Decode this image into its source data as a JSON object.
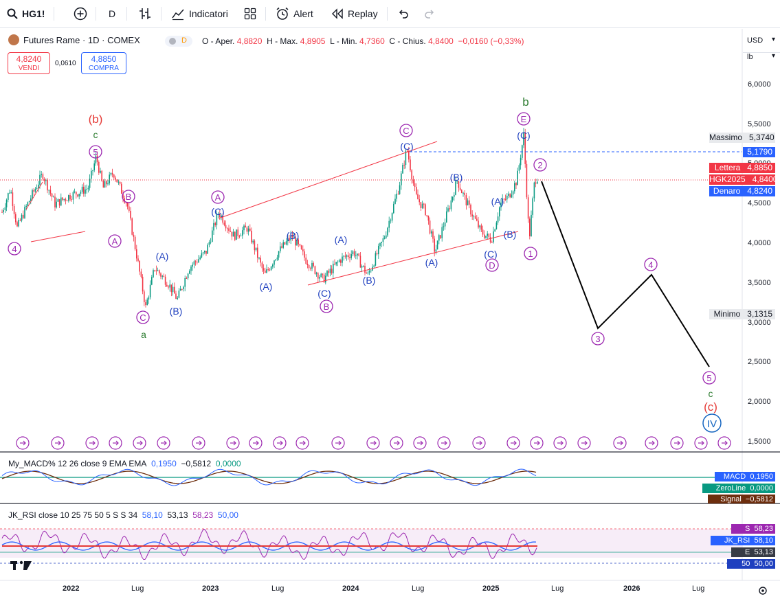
{
  "toolbar": {
    "symbol": "HG1!",
    "interval": "D",
    "indicators_label": "Indicatori",
    "alert_label": "Alert",
    "replay_label": "Replay"
  },
  "header": {
    "title": "Futures Rame · 1D · COMEX",
    "d_badge": "D",
    "ohlc": {
      "o_label": "O - Aper.",
      "o_value": "4,8820",
      "h_label": "H - Max.",
      "h_value": "4,8905",
      "l_label": "L - Min.",
      "l_value": "4,7360",
      "c_label": "C - Chius.",
      "c_value": "4,8400",
      "change": "−0,0160 (−0,33%)"
    },
    "sell": {
      "price": "4,8240",
      "label": "VENDI"
    },
    "spread": "0,0610",
    "buy": {
      "price": "4,8850",
      "label": "COMPRA"
    }
  },
  "scale": {
    "currency": "USD",
    "unit": "lb",
    "ticks": [
      "6,0000",
      "5,5000",
      "5,0000",
      "4,5000",
      "4,0000",
      "3,5000",
      "3,0000",
      "2,5000",
      "2,0000",
      "1,5000"
    ]
  },
  "price_labels": {
    "massimo": {
      "label": "Massimo",
      "value": "5,3740"
    },
    "level": "5,1790",
    "lettera": {
      "label": "Lettera",
      "value": "4,8850"
    },
    "symbol_price": {
      "label": "HGK2025",
      "value": "4,8400"
    },
    "denaro": {
      "label": "Denaro",
      "value": "4,8240"
    },
    "minimo": {
      "label": "Minimo",
      "value": "3,1315"
    }
  },
  "x_axis": [
    "2022",
    "Lug",
    "2023",
    "Lug",
    "2024",
    "Lug",
    "2025",
    "Lug",
    "2026",
    "Lug"
  ],
  "wave_labels": {
    "b_red": "(b)",
    "c_green_1": "c",
    "five_top": "5",
    "four_left": "4",
    "B_circ_1": "B",
    "A_circ_1": "A",
    "C_circ_low": "C",
    "a_green": "a",
    "A_p1": "(A)",
    "B_p1": "(B)",
    "A_circ_2": "A",
    "C_p1": "(C)",
    "A_p2": "(A)",
    "B_p2": "(B)",
    "A_p3": "(A)",
    "C_p2": "(C)",
    "B_circ_2": "B",
    "B_p3": "(B)",
    "C_circ_2": "C",
    "C_p3": "(C)",
    "B_p4": "(B)",
    "A_p4": "(A)",
    "A_p5": "(A)",
    "B_p5": "(B)",
    "C_p4": "(C)",
    "D_circ": "D",
    "b_green": "b",
    "E_circ": "E",
    "C_p5": "(C)",
    "two": "2",
    "one": "1",
    "three": "3",
    "four": "4",
    "five": "5",
    "c_green_2": "c",
    "c_red": "(c)",
    "IV": "IV"
  },
  "macd": {
    "title": "My_MACD% 12 26 close 9 EMA EMA",
    "v1": "0,1950",
    "v2": "−0,5812",
    "v3": "0,0000",
    "labels": {
      "macd": "MACD",
      "macd_val": "0,1950",
      "zero": "ZeroLine",
      "zero_val": "0,0000",
      "signal": "Signal",
      "signal_val": "−0,5812"
    }
  },
  "rsi": {
    "title": "JK_RSI close 10 25 75 50 5 S S 34",
    "v1": "58,10",
    "v2": "53,13",
    "v3": "58,23",
    "v4": "50,00",
    "labels": {
      "s": "S",
      "s_val": "58,23",
      "jk": "JK_RSI",
      "jk_val": "58,10",
      "e": "E",
      "e_val": "53,13",
      "fifty": "50",
      "fifty_val": "50,00"
    }
  },
  "colors": {
    "up": "#089981",
    "down": "#f23645",
    "purple": "#9c27b0",
    "blue": "#2962ff",
    "wave_blue": "#1e3fbf"
  }
}
